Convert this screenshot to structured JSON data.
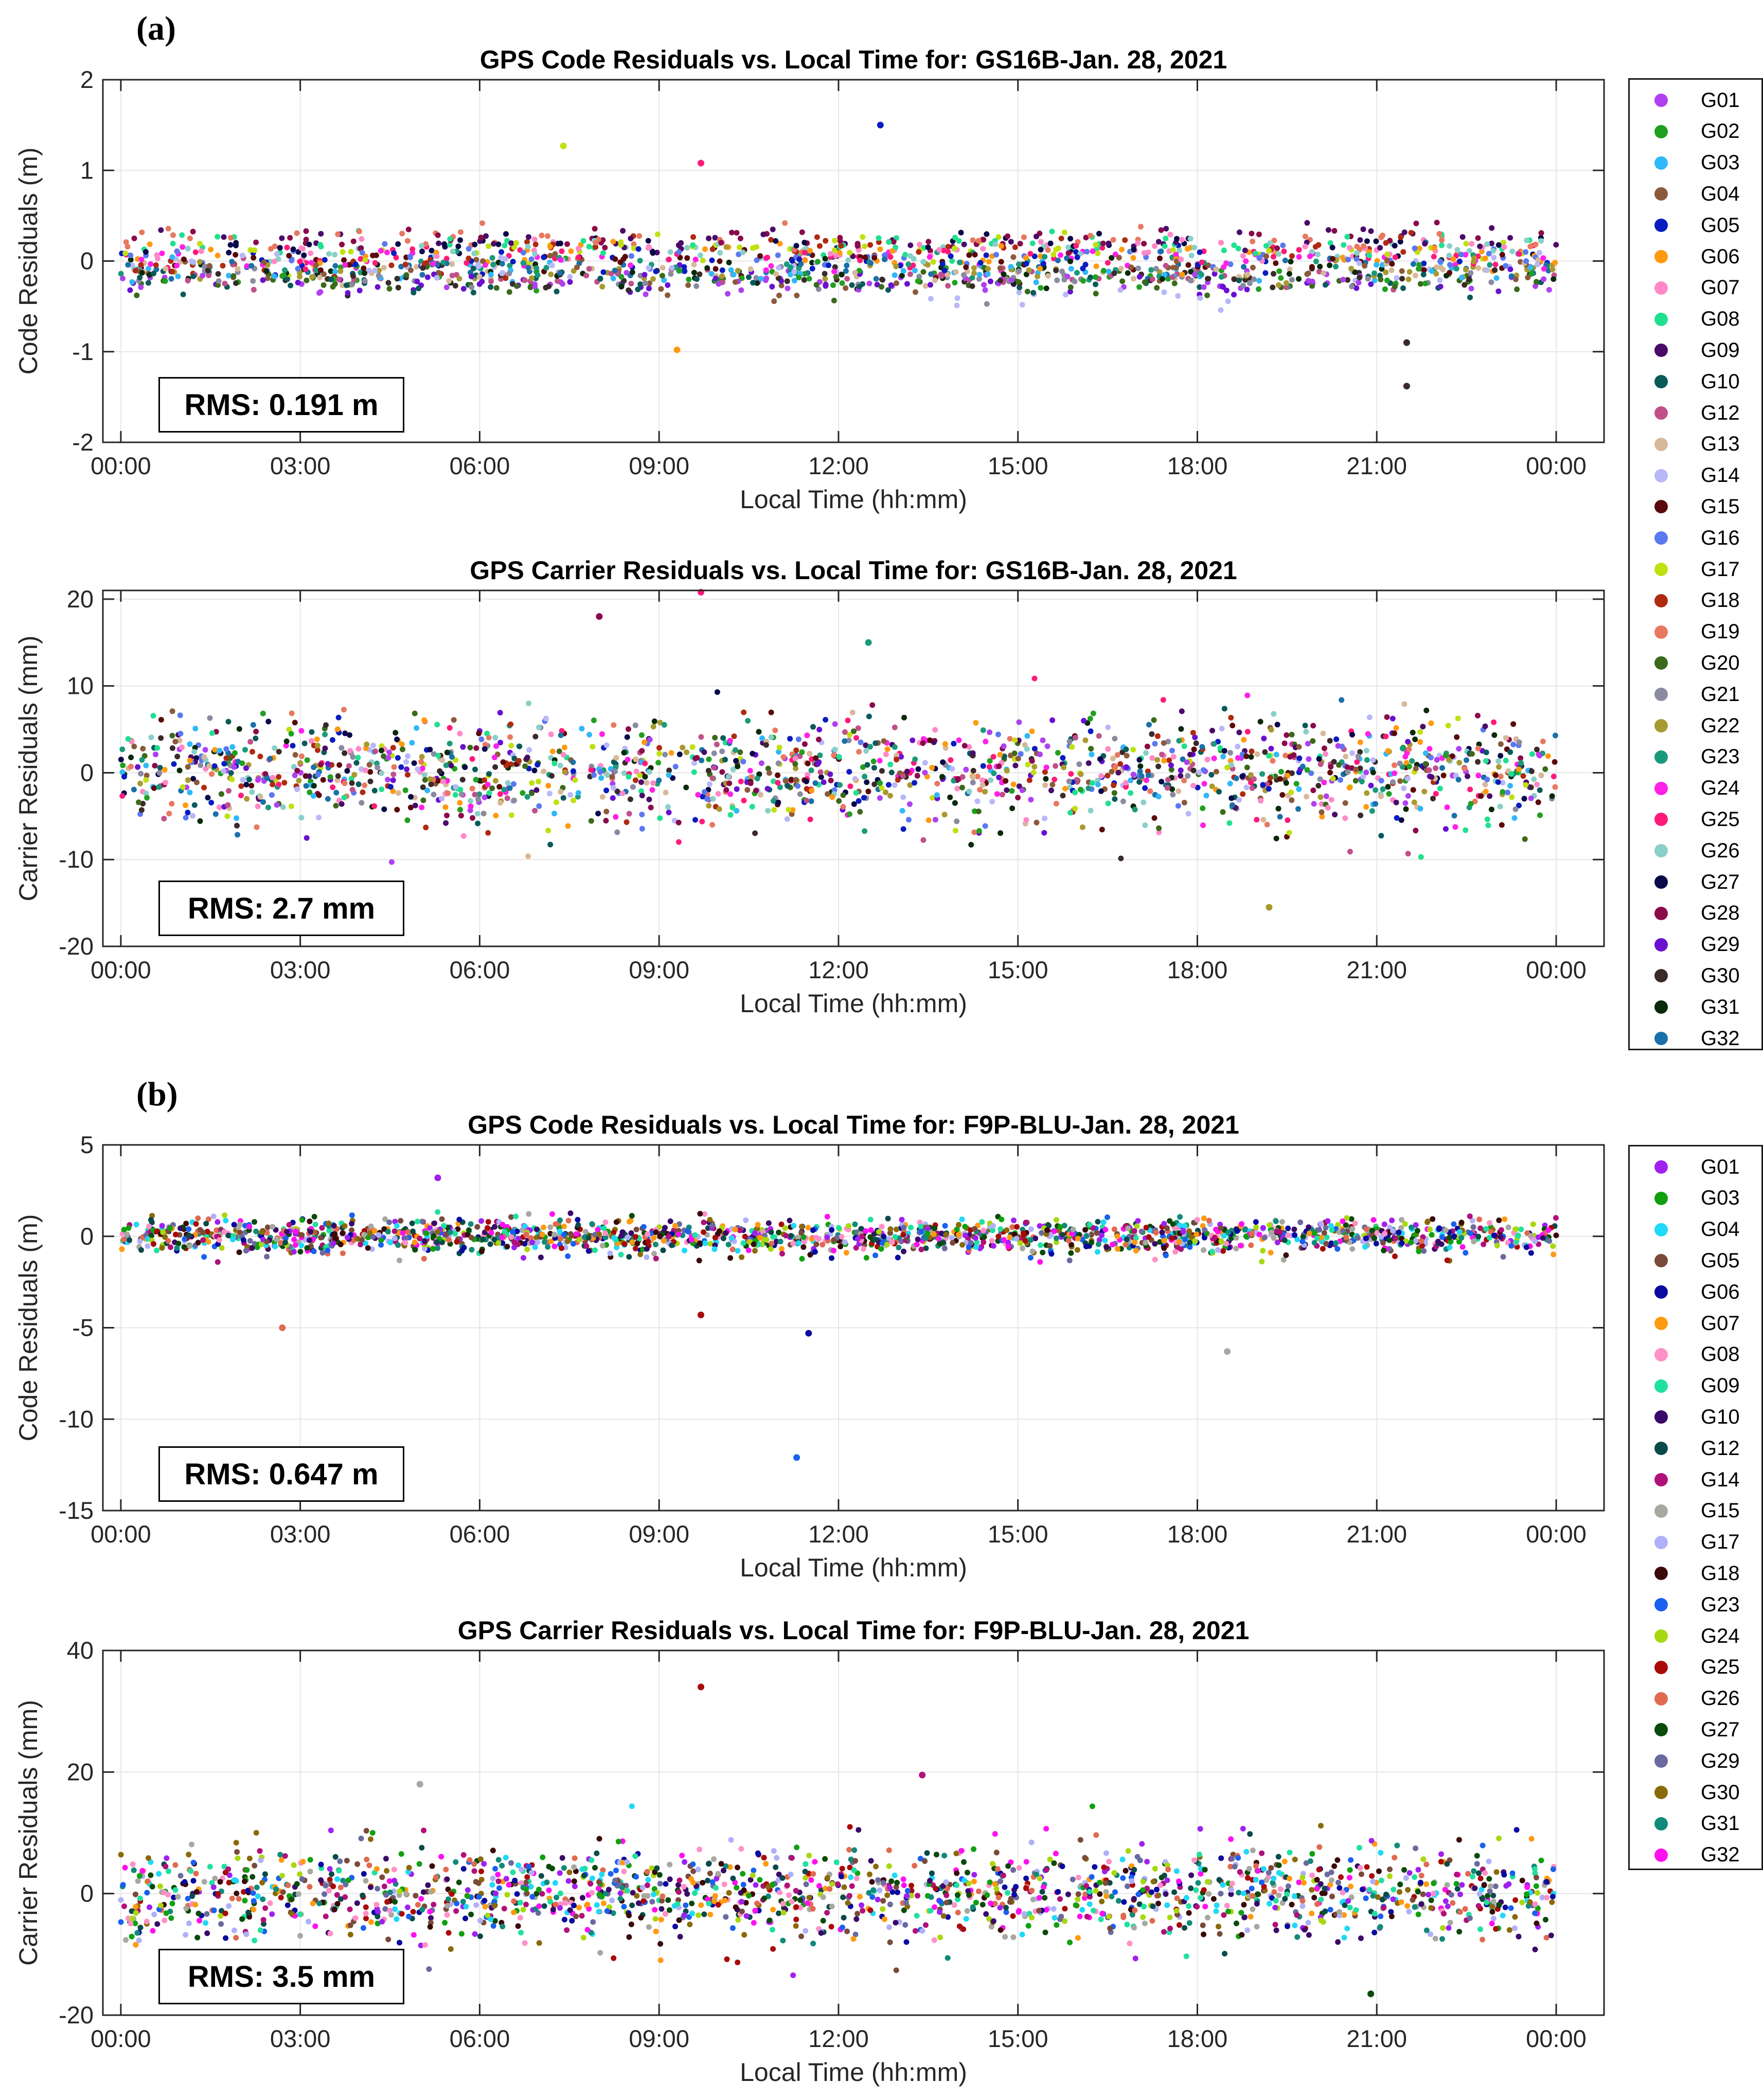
{
  "panels": [
    {
      "label": "(a)"
    },
    {
      "label": "(b)"
    }
  ],
  "chart_data": [
    {
      "type": "scatter",
      "title": "GPS Code Residuals vs. Local Time for: GS16B-Jan. 28, 2021",
      "xlabel": "Local Time (hh:mm)",
      "ylabel": "Code Residuals (m)",
      "xticks": [
        "00:00",
        "03:00",
        "06:00",
        "09:00",
        "12:00",
        "15:00",
        "18:00",
        "21:00",
        "00:00"
      ],
      "xlim_hours": [
        -0.3,
        24.8
      ],
      "ylim": [
        -2,
        2
      ],
      "yticks": [
        -2,
        -1,
        0,
        1,
        2
      ],
      "grid": true,
      "rms_text": "RMS: 0.191 m",
      "noise_sd": 0.1,
      "series_profile": "Satellite tracks near 0 m with occasional outliers",
      "notable_points": [
        {
          "x": 12.7,
          "y": 1.5,
          "sat": "G05"
        },
        {
          "x": 7.4,
          "y": 1.27,
          "sat": "G17"
        },
        {
          "x": 9.7,
          "y": 1.08,
          "sat": "G25"
        },
        {
          "x": 21.5,
          "y": -1.38,
          "sat": "G30"
        },
        {
          "x": 21.5,
          "y": -0.9,
          "sat": "G30"
        },
        {
          "x": 9.3,
          "y": -0.98,
          "sat": "G06"
        }
      ]
    },
    {
      "type": "scatter",
      "title": "GPS Carrier Residuals vs. Local Time for: GS16B-Jan. 28, 2021",
      "xlabel": "Local Time (hh:mm)",
      "ylabel": "Carrier Residuals (mm)",
      "xticks": [
        "00:00",
        "03:00",
        "06:00",
        "09:00",
        "12:00",
        "15:00",
        "18:00",
        "21:00",
        "00:00"
      ],
      "xlim_hours": [
        -0.3,
        24.8
      ],
      "ylim": [
        -20,
        21
      ],
      "yticks": [
        -20,
        -10,
        0,
        10,
        20
      ],
      "grid": true,
      "rms_text": "RMS: 2.7 mm",
      "noise_sd": 3.0,
      "notable_points": [
        {
          "x": 9.7,
          "y": 20.8,
          "sat": "G25"
        },
        {
          "x": 8.0,
          "y": 18.0,
          "sat": "G28"
        },
        {
          "x": 12.5,
          "y": 15.0,
          "sat": "G23"
        },
        {
          "x": 19.2,
          "y": -15.5,
          "sat": "G22"
        }
      ]
    },
    {
      "type": "scatter",
      "title": "GPS Code Residuals vs. Local Time for: F9P-BLU-Jan. 28, 2021",
      "xlabel": "Local Time (hh:mm)",
      "ylabel": "Code Residuals (m)",
      "xticks": [
        "00:00",
        "03:00",
        "06:00",
        "09:00",
        "12:00",
        "15:00",
        "18:00",
        "21:00",
        "00:00"
      ],
      "xlim_hours": [
        -0.3,
        24.8
      ],
      "ylim": [
        -15,
        5
      ],
      "yticks": [
        -15,
        -10,
        -5,
        0,
        5
      ],
      "grid": true,
      "rms_text": "RMS: 0.647 m",
      "noise_sd": 0.45,
      "notable_points": [
        {
          "x": 11.3,
          "y": -12.1,
          "sat": "G23"
        },
        {
          "x": 11.5,
          "y": -5.3,
          "sat": "G06"
        },
        {
          "x": 2.7,
          "y": -5.0,
          "sat": "G26"
        },
        {
          "x": 9.7,
          "y": -4.3,
          "sat": "G25"
        },
        {
          "x": 18.5,
          "y": -6.3,
          "sat": "G15"
        },
        {
          "x": 5.3,
          "y": 3.2,
          "sat": "G01"
        }
      ]
    },
    {
      "type": "scatter",
      "title": "GPS Carrier Residuals vs. Local Time for: F9P-BLU-Jan. 28, 2021",
      "xlabel": "Local Time (hh:mm)",
      "ylabel": "Carrier Residuals (mm)",
      "xticks": [
        "00:00",
        "03:00",
        "06:00",
        "09:00",
        "12:00",
        "15:00",
        "18:00",
        "21:00",
        "00:00"
      ],
      "xlim_hours": [
        -0.3,
        24.8
      ],
      "ylim": [
        -20,
        40
      ],
      "yticks": [
        -20,
        0,
        20,
        40
      ],
      "grid": true,
      "rms_text": "RMS: 3.5 mm",
      "noise_sd": 3.8,
      "notable_points": [
        {
          "x": 9.7,
          "y": 34.0,
          "sat": "G25"
        },
        {
          "x": 13.4,
          "y": 19.5,
          "sat": "G14"
        },
        {
          "x": 5.0,
          "y": 18.0,
          "sat": "G15"
        },
        {
          "x": 20.9,
          "y": -16.5,
          "sat": "G27"
        }
      ]
    }
  ],
  "legends": [
    {
      "items": [
        {
          "label": "G01",
          "color": "#b040f0"
        },
        {
          "label": "G02",
          "color": "#20a020"
        },
        {
          "label": "G03",
          "color": "#30b8f8"
        },
        {
          "label": "G04",
          "color": "#8b5a3c"
        },
        {
          "label": "G05",
          "color": "#0a1cc0"
        },
        {
          "label": "G06",
          "color": "#ff9a10"
        },
        {
          "label": "G07",
          "color": "#ff88c8"
        },
        {
          "label": "G08",
          "color": "#20e090"
        },
        {
          "label": "G09",
          "color": "#4a0a6a"
        },
        {
          "label": "G10",
          "color": "#0a5a5a"
        },
        {
          "label": "G12",
          "color": "#c0508a"
        },
        {
          "label": "G13",
          "color": "#d8b89a"
        },
        {
          "label": "G14",
          "color": "#b8b8f8"
        },
        {
          "label": "G15",
          "color": "#5a0a0a"
        },
        {
          "label": "G16",
          "color": "#5a78f0"
        },
        {
          "label": "G17",
          "color": "#c0e010"
        },
        {
          "label": "G18",
          "color": "#b02a10"
        },
        {
          "label": "G19",
          "color": "#e87860"
        },
        {
          "label": "G20",
          "color": "#3a6a1a"
        },
        {
          "label": "G21",
          "color": "#8a8aa0"
        },
        {
          "label": "G22",
          "color": "#a89a30"
        },
        {
          "label": "G23",
          "color": "#1a9a7a"
        },
        {
          "label": "G24",
          "color": "#ff20e8"
        },
        {
          "label": "G25",
          "color": "#ff1a7a"
        },
        {
          "label": "G26",
          "color": "#88d0c8"
        },
        {
          "label": "G27",
          "color": "#0a0a4a"
        },
        {
          "label": "G28",
          "color": "#8a0a4a"
        },
        {
          "label": "G29",
          "color": "#6a10d0"
        },
        {
          "label": "G30",
          "color": "#3a2a2a"
        },
        {
          "label": "G31",
          "color": "#0a2a0a"
        },
        {
          "label": "G32",
          "color": "#1a70a8"
        }
      ]
    },
    {
      "items": [
        {
          "label": "G01",
          "color": "#a020f0"
        },
        {
          "label": "G03",
          "color": "#10a010"
        },
        {
          "label": "G04",
          "color": "#20d8f8"
        },
        {
          "label": "G05",
          "color": "#7a4a3a"
        },
        {
          "label": "G06",
          "color": "#0a0aa0"
        },
        {
          "label": "G07",
          "color": "#ff9a10"
        },
        {
          "label": "G08",
          "color": "#ff90c8"
        },
        {
          "label": "G09",
          "color": "#20e0a0"
        },
        {
          "label": "G10",
          "color": "#3a0a6a"
        },
        {
          "label": "G12",
          "color": "#0a4a4a"
        },
        {
          "label": "G14",
          "color": "#b0107a"
        },
        {
          "label": "G15",
          "color": "#a8a8a0"
        },
        {
          "label": "G17",
          "color": "#b0b0f8"
        },
        {
          "label": "G18",
          "color": "#3a0a0a"
        },
        {
          "label": "G23",
          "color": "#1a60f0"
        },
        {
          "label": "G24",
          "color": "#a8d810"
        },
        {
          "label": "G25",
          "color": "#a80a0a"
        },
        {
          "label": "G26",
          "color": "#e06a50"
        },
        {
          "label": "G27",
          "color": "#0a4a0a"
        },
        {
          "label": "G29",
          "color": "#6a6aa0"
        },
        {
          "label": "G30",
          "color": "#8a6a0a"
        },
        {
          "label": "G31",
          "color": "#108a7a"
        },
        {
          "label": "G32",
          "color": "#ff10f0"
        }
      ]
    }
  ]
}
